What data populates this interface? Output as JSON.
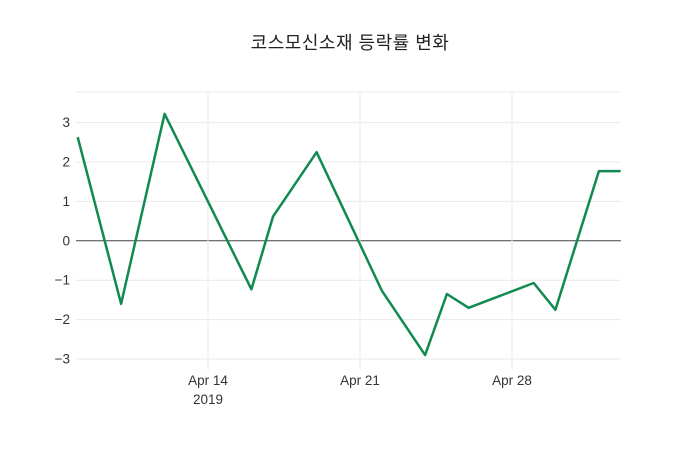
{
  "title": "코스모신소재 등락률 변화",
  "colors": {
    "line": "#118a50",
    "grid": "#e9e9e9",
    "zero_line": "#444444",
    "tick_text": "#333333",
    "background": "#ffffff"
  },
  "chart_data": {
    "type": "line",
    "title": "코스모신소재 등락률 변화",
    "xlabel": "",
    "ylabel": "",
    "ylim": [
      -3.3,
      3.8
    ],
    "grid": true,
    "zero_line": true,
    "legend": "none",
    "y_ticks": [
      {
        "label": "3",
        "value": 3
      },
      {
        "label": "2",
        "value": 2
      },
      {
        "label": "1",
        "value": 1
      },
      {
        "label": "0",
        "value": 0
      },
      {
        "label": "−1",
        "value": -1
      },
      {
        "label": "−2",
        "value": -2
      },
      {
        "label": "−3",
        "value": -3
      }
    ],
    "x_ticks": [
      {
        "label": "Apr 14",
        "sub_label": "2019",
        "day": 6
      },
      {
        "label": "Apr 21",
        "sub_label": "",
        "day": 13
      },
      {
        "label": "Apr 28",
        "sub_label": "",
        "day": 20
      }
    ],
    "series": [
      {
        "name": "등락률",
        "color": "#118a50",
        "points": [
          {
            "date": "Apr 8",
            "day": 0,
            "value": 2.63
          },
          {
            "date": "Apr 10",
            "day": 2,
            "value": -1.6
          },
          {
            "date": "Apr 12",
            "day": 4,
            "value": 3.22
          },
          {
            "date": "Apr 16",
            "day": 8,
            "value": -1.23
          },
          {
            "date": "Apr 17",
            "day": 9,
            "value": 0.62
          },
          {
            "date": "Apr 19",
            "day": 11,
            "value": 2.25
          },
          {
            "date": "Apr 22",
            "day": 14,
            "value": -1.26
          },
          {
            "date": "Apr 24",
            "day": 16,
            "value": -2.9
          },
          {
            "date": "Apr 25",
            "day": 17,
            "value": -1.35
          },
          {
            "date": "Apr 26",
            "day": 18,
            "value": -1.7
          },
          {
            "date": "Apr 29",
            "day": 21,
            "value": -1.07
          },
          {
            "date": "Apr 30",
            "day": 22,
            "value": -1.75
          },
          {
            "date": "May 2",
            "day": 24,
            "value": 1.77
          },
          {
            "date": "May 3",
            "day": 25,
            "value": 1.77
          }
        ]
      }
    ]
  }
}
